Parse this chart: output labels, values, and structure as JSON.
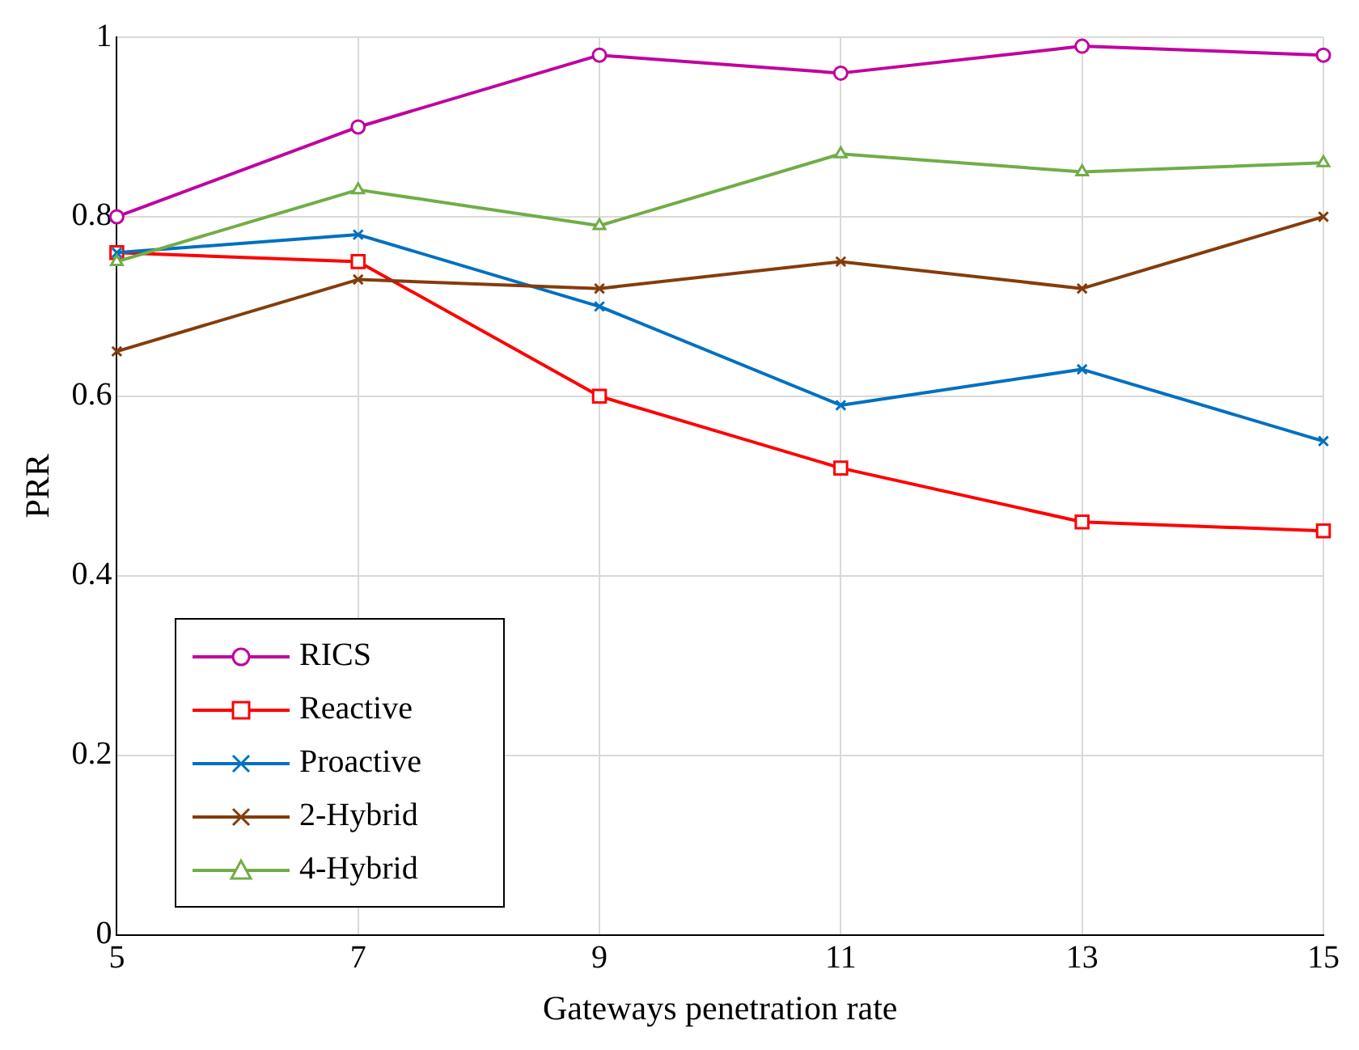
{
  "chart_data": {
    "type": "line",
    "xlabel": "Gateways penetration rate",
    "ylabel": "PRR",
    "x": [
      5,
      7,
      9,
      11,
      13,
      15
    ],
    "series": [
      {
        "name": "RICS",
        "color": "#c000a0",
        "marker": "circle",
        "values": [
          0.8,
          0.9,
          0.98,
          0.96,
          0.99,
          0.98
        ]
      },
      {
        "name": "Reactive",
        "color": "#ff0000",
        "marker": "square",
        "values": [
          0.76,
          0.75,
          0.6,
          0.52,
          0.46,
          0.45
        ]
      },
      {
        "name": "Proactive",
        "color": "#0070c0",
        "marker": "cross",
        "values": [
          0.76,
          0.78,
          0.7,
          0.59,
          0.63,
          0.55
        ]
      },
      {
        "name": "2-Hybrid",
        "color": "#843c0c",
        "marker": "cross",
        "values": [
          0.65,
          0.73,
          0.72,
          0.75,
          0.72,
          0.8
        ]
      },
      {
        "name": "4-Hybrid",
        "color": "#70ad47",
        "marker": "triangle",
        "values": [
          0.75,
          0.83,
          0.79,
          0.87,
          0.85,
          0.86
        ]
      }
    ],
    "xlim": [
      5,
      15
    ],
    "xticks": [
      5,
      7,
      9,
      11,
      13,
      15
    ],
    "ylim": [
      0,
      1
    ],
    "yticks": [
      0,
      0.2,
      0.4,
      0.6,
      0.8,
      1
    ],
    "grid": true,
    "legend": "bottom left",
    "line_style": "solid"
  }
}
